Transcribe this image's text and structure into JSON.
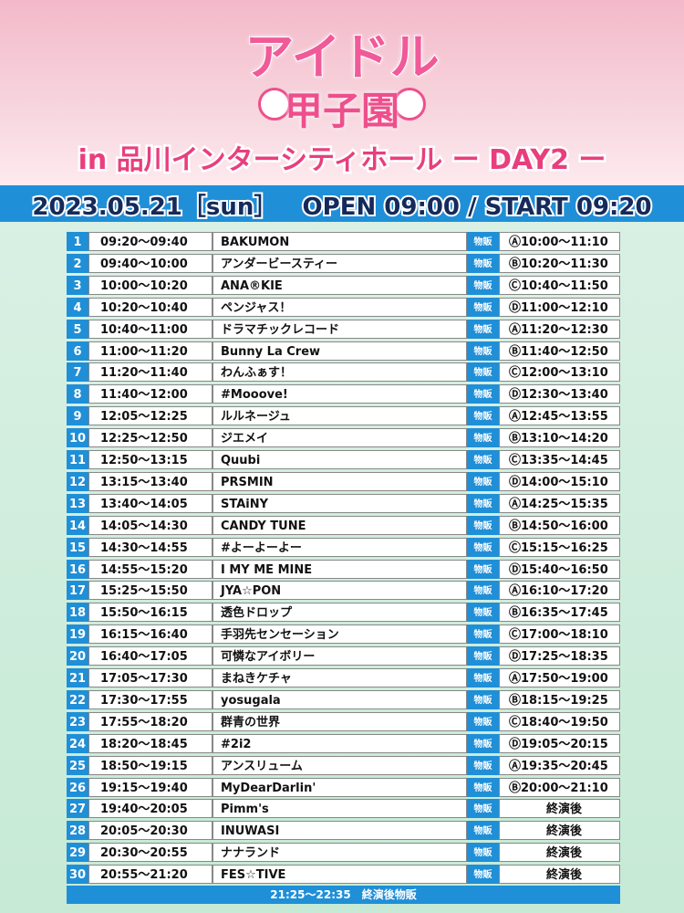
{
  "header": {
    "logo_top": "アイドル",
    "logo_bottom": "甲子園",
    "subtitle": "in 品川インターシティホール ー DAY2 ー",
    "date": "2023.05.21［sun］",
    "open_start": "OPEN 09:00 / START 09:20"
  },
  "table": {
    "merch_label": "物販",
    "rows": [
      [
        "1",
        "09:20〜09:40",
        "BAKUMON",
        "Ⓐ10:00〜11:10"
      ],
      [
        "2",
        "09:40〜10:00",
        "アンダービースティー",
        "Ⓑ10:20〜11:30"
      ],
      [
        "3",
        "10:00〜10:20",
        "ANA®KIE",
        "Ⓒ10:40〜11:50"
      ],
      [
        "4",
        "10:20〜10:40",
        "ペンジャス！",
        "Ⓓ11:00〜12:10"
      ],
      [
        "5",
        "10:40〜11:00",
        "ドラマチックレコード",
        "Ⓐ11:20〜12:30"
      ],
      [
        "6",
        "11:00〜11:20",
        "Bunny La Crew",
        "Ⓑ11:40〜12:50"
      ],
      [
        "7",
        "11:20〜11:40",
        "わんふぁす！",
        "Ⓒ12:00〜13:10"
      ],
      [
        "8",
        "11:40〜12:00",
        "#Mooove!",
        "Ⓓ12:30〜13:40"
      ],
      [
        "9",
        "12:05〜12:25",
        "ルルネージュ",
        "Ⓐ12:45〜13:55"
      ],
      [
        "10",
        "12:25〜12:50",
        "ジエメイ",
        "Ⓑ13:10〜14:20"
      ],
      [
        "11",
        "12:50〜13:15",
        "Quubi",
        "Ⓒ13:35〜14:45"
      ],
      [
        "12",
        "13:15〜13:40",
        "PRSMIN",
        "Ⓓ14:00〜15:10"
      ],
      [
        "13",
        "13:40〜14:05",
        "STAiNY",
        "Ⓐ14:25〜15:35"
      ],
      [
        "14",
        "14:05〜14:30",
        "CANDY TUNE",
        "Ⓑ14:50〜16:00"
      ],
      [
        "15",
        "14:30〜14:55",
        "#よーよーよー",
        "Ⓒ15:15〜16:25"
      ],
      [
        "16",
        "14:55〜15:20",
        "I MY ME MINE",
        "Ⓓ15:40〜16:50"
      ],
      [
        "17",
        "15:25〜15:50",
        "JYA☆PON",
        "Ⓐ16:10〜17:20"
      ],
      [
        "18",
        "15:50〜16:15",
        "透色ドロップ",
        "Ⓑ16:35〜17:45"
      ],
      [
        "19",
        "16:15〜16:40",
        "手羽先センセーション",
        "Ⓒ17:00〜18:10"
      ],
      [
        "20",
        "16:40〜17:05",
        "可憐なアイボリー",
        "Ⓓ17:25〜18:35"
      ],
      [
        "21",
        "17:05〜17:30",
        "まねきケチャ",
        "Ⓐ17:50〜19:00"
      ],
      [
        "22",
        "17:30〜17:55",
        "yosugala",
        "Ⓑ18:15〜19:25"
      ],
      [
        "23",
        "17:55〜18:20",
        "群青の世界",
        "Ⓒ18:40〜19:50"
      ],
      [
        "24",
        "18:20〜18:45",
        "#2i2",
        "Ⓓ19:05〜20:15"
      ],
      [
        "25",
        "18:50〜19:15",
        "アンスリューム",
        "Ⓐ19:35〜20:45"
      ],
      [
        "26",
        "19:15〜19:40",
        "MyDearDarlin'",
        "Ⓑ20:00〜21:10"
      ],
      [
        "27",
        "19:40〜20:05",
        "Pimm's",
        "終演後"
      ],
      [
        "28",
        "20:05〜20:30",
        "INUWASI",
        "終演後"
      ],
      [
        "29",
        "20:30〜20:55",
        "ナナランド",
        "終演後"
      ],
      [
        "30",
        "20:55〜21:20",
        "FES☆TIVE",
        "終演後"
      ]
    ],
    "footer": "21:25〜22:35　終演後物販"
  }
}
